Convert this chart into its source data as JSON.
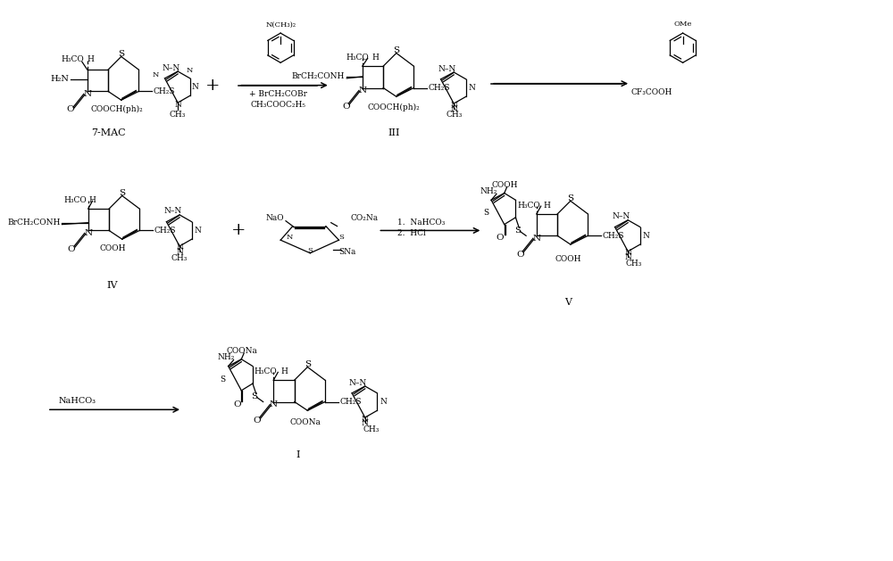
{
  "background_color": "#ffffff",
  "figsize": [
    10.0,
    6.29
  ],
  "dpi": 100,
  "compounds": {
    "7mac_label": "7-MAC",
    "III_label": "III",
    "IV_label": "IV",
    "V_label": "V",
    "I_label": "I"
  },
  "reagents": {
    "row1_arrow1_below1": "+ BrCH₂COBr",
    "row1_arrow1_below2": "CH₃COOC₂H₅",
    "row1_arrow2_right": "CF₃COOH",
    "row2_arrow_above1": "1.  NaHCO₃",
    "row2_arrow_above2": "2.  HCl",
    "row3_arrow_left": "NaHCO₃"
  }
}
